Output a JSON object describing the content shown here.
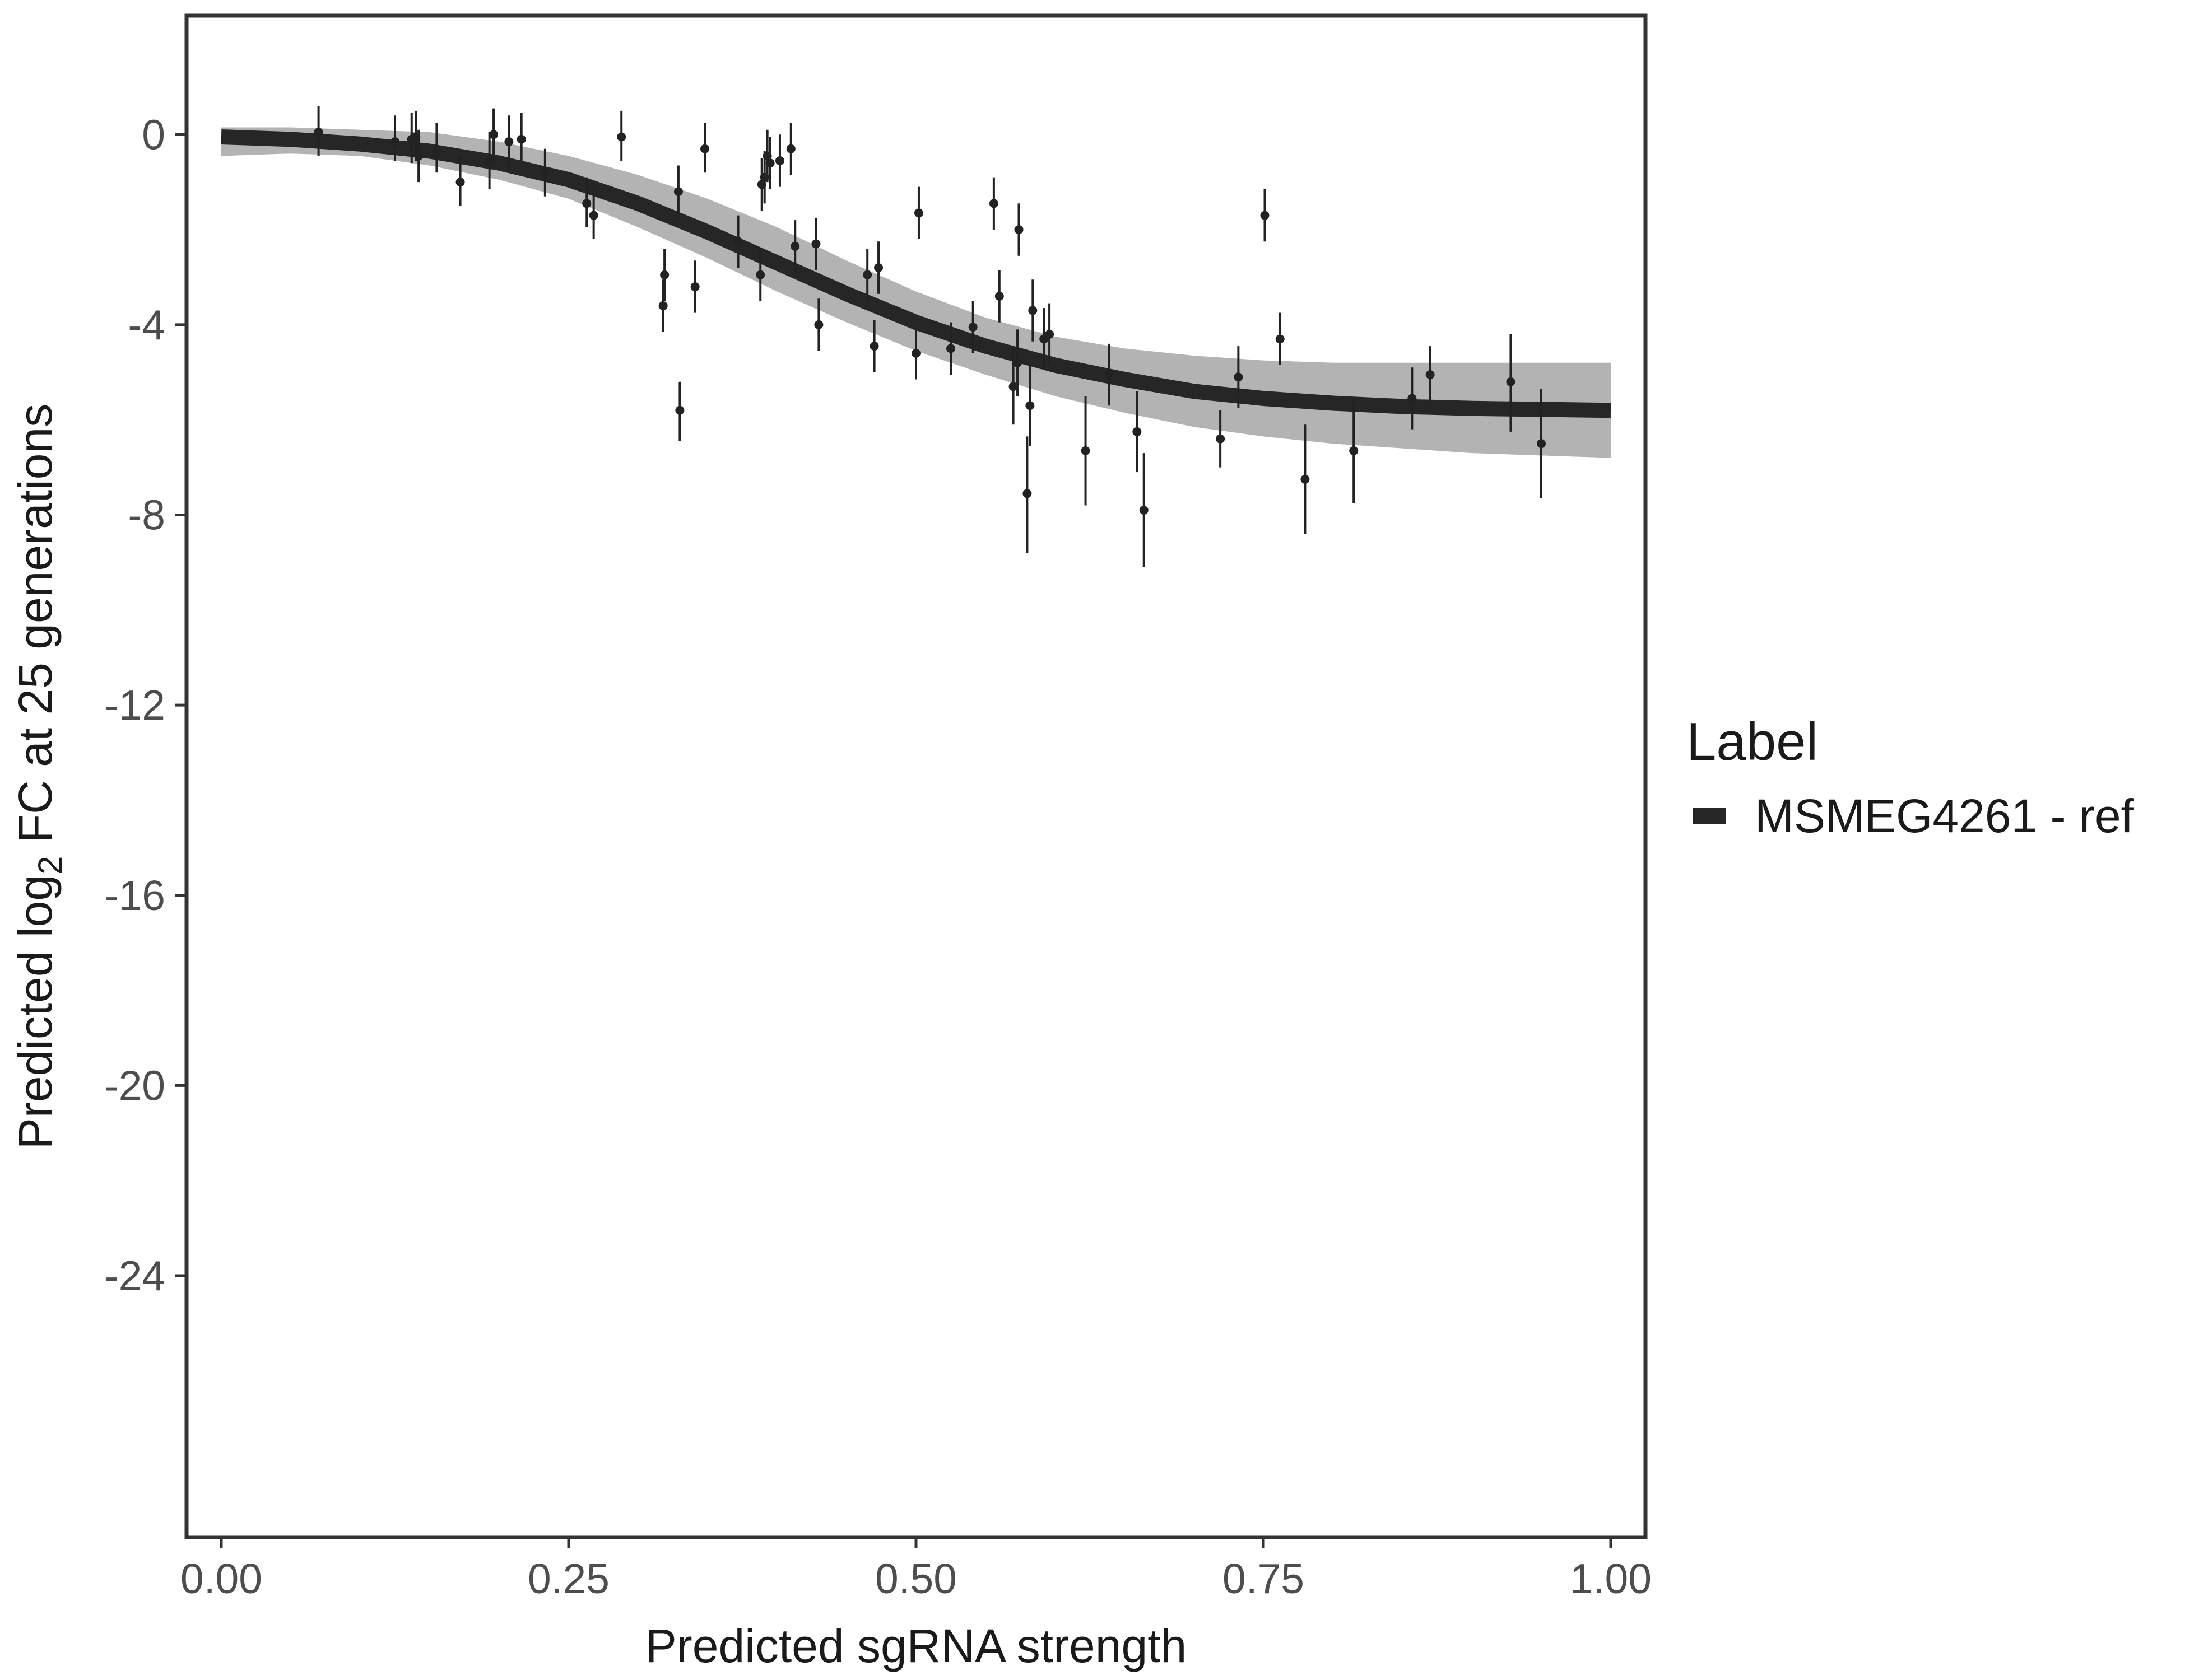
{
  "chart_data": {
    "type": "scatter",
    "xlabel": "Predicted sgRNA strength",
    "ylabel_parts": {
      "before": "Predicted  log",
      "subscript": "2",
      "after": " FC at 25 generations"
    },
    "xlim": [
      -0.025,
      1.025
    ],
    "ylim": [
      -29.5,
      2.5
    ],
    "x_ticks": [
      0.0,
      0.25,
      0.5,
      0.75,
      1.0
    ],
    "x_tick_labels": [
      "0.00",
      "0.25",
      "0.50",
      "0.75",
      "1.00"
    ],
    "y_ticks": [
      0,
      -4,
      -8,
      -12,
      -16,
      -20,
      -24
    ],
    "y_tick_labels": [
      "0",
      "-4",
      "-8",
      "-12",
      "-16",
      "-20",
      "-24"
    ],
    "grid": false,
    "legend": {
      "title": "Label",
      "position": "right",
      "entries": [
        {
          "name": "MSMEG4261 - ref",
          "color": "#262626"
        }
      ]
    },
    "fit_curve": {
      "name": "MSMEG4261 - ref",
      "color": "#262626",
      "x": [
        0.0,
        0.05,
        0.1,
        0.15,
        0.2,
        0.25,
        0.3,
        0.35,
        0.4,
        0.45,
        0.5,
        0.55,
        0.6,
        0.65,
        0.7,
        0.75,
        0.8,
        0.85,
        0.9,
        0.95,
        1.0
      ],
      "y": [
        -0.05,
        -0.1,
        -0.2,
        -0.35,
        -0.6,
        -0.95,
        -1.45,
        -2.05,
        -2.7,
        -3.35,
        -3.95,
        -4.45,
        -4.85,
        -5.15,
        -5.4,
        -5.55,
        -5.65,
        -5.72,
        -5.76,
        -5.78,
        -5.8
      ]
    },
    "uncertainty_band": {
      "color": "#a6a6a6",
      "x": [
        0.0,
        0.05,
        0.1,
        0.15,
        0.2,
        0.25,
        0.3,
        0.35,
        0.4,
        0.45,
        0.5,
        0.55,
        0.6,
        0.65,
        0.7,
        0.75,
        0.8,
        0.85,
        0.9,
        0.95,
        1.0
      ],
      "lower": [
        -0.45,
        -0.4,
        -0.45,
        -0.65,
        -0.95,
        -1.35,
        -1.95,
        -2.6,
        -3.3,
        -3.95,
        -4.55,
        -5.05,
        -5.5,
        -5.85,
        -6.15,
        -6.35,
        -6.5,
        -6.6,
        -6.7,
        -6.75,
        -6.8
      ],
      "upper": [
        0.15,
        0.15,
        0.1,
        0.05,
        -0.15,
        -0.45,
        -0.85,
        -1.35,
        -1.95,
        -2.65,
        -3.3,
        -3.85,
        -4.25,
        -4.5,
        -4.65,
        -4.75,
        -4.8,
        -4.8,
        -4.8,
        -4.8,
        -4.8
      ]
    },
    "points": [
      {
        "x": 0.07,
        "y": 0.05,
        "low": -0.45,
        "high": 0.6
      },
      {
        "x": 0.125,
        "y": -0.15,
        "low": -0.55,
        "high": 0.4
      },
      {
        "x": 0.137,
        "y": -0.1,
        "low": -0.6,
        "high": 0.45
      },
      {
        "x": 0.14,
        "y": -0.05,
        "low": -0.55,
        "high": 0.5
      },
      {
        "x": 0.142,
        "y": -0.45,
        "low": -1.0,
        "high": 0.1
      },
      {
        "x": 0.155,
        "y": -0.35,
        "low": -0.8,
        "high": 0.25
      },
      {
        "x": 0.172,
        "y": -1.0,
        "low": -1.5,
        "high": -0.45
      },
      {
        "x": 0.193,
        "y": -0.55,
        "low": -1.15,
        "high": 0.05
      },
      {
        "x": 0.196,
        "y": 0.0,
        "low": -0.6,
        "high": 0.55
      },
      {
        "x": 0.207,
        "y": -0.15,
        "low": -0.7,
        "high": 0.4
      },
      {
        "x": 0.216,
        "y": -0.1,
        "low": -0.55,
        "high": 0.45
      },
      {
        "x": 0.233,
        "y": -0.8,
        "low": -1.3,
        "high": -0.3
      },
      {
        "x": 0.263,
        "y": -1.45,
        "low": -1.95,
        "high": -0.9
      },
      {
        "x": 0.268,
        "y": -1.7,
        "low": -2.2,
        "high": -1.1
      },
      {
        "x": 0.288,
        "y": -0.05,
        "low": -0.55,
        "high": 0.5
      },
      {
        "x": 0.318,
        "y": -3.6,
        "low": -4.15,
        "high": -3.05
      },
      {
        "x": 0.319,
        "y": -2.95,
        "low": -3.5,
        "high": -2.4
      },
      {
        "x": 0.329,
        "y": -1.2,
        "low": -1.75,
        "high": -0.65
      },
      {
        "x": 0.33,
        "y": -5.8,
        "low": -6.45,
        "high": -5.2
      },
      {
        "x": 0.341,
        "y": -3.2,
        "low": -3.75,
        "high": -2.65
      },
      {
        "x": 0.348,
        "y": -0.3,
        "low": -0.8,
        "high": 0.25
      },
      {
        "x": 0.372,
        "y": -2.25,
        "low": -2.8,
        "high": -1.7
      },
      {
        "x": 0.388,
        "y": -2.95,
        "low": -3.5,
        "high": -2.4
      },
      {
        "x": 0.389,
        "y": -1.05,
        "low": -1.6,
        "high": -0.5
      },
      {
        "x": 0.391,
        "y": -0.9,
        "low": -1.45,
        "high": -0.35
      },
      {
        "x": 0.393,
        "y": -0.45,
        "low": -1.0,
        "high": 0.1
      },
      {
        "x": 0.395,
        "y": -0.6,
        "low": -1.15,
        "high": -0.05
      },
      {
        "x": 0.402,
        "y": -0.55,
        "low": -1.1,
        "high": 0.0
      },
      {
        "x": 0.41,
        "y": -0.3,
        "low": -0.85,
        "high": 0.25
      },
      {
        "x": 0.413,
        "y": -2.35,
        "low": -2.9,
        "high": -1.8
      },
      {
        "x": 0.428,
        "y": -2.3,
        "low": -2.85,
        "high": -1.75
      },
      {
        "x": 0.43,
        "y": -4.0,
        "low": -4.55,
        "high": -3.45
      },
      {
        "x": 0.465,
        "y": -2.95,
        "low": -3.5,
        "high": -2.4
      },
      {
        "x": 0.47,
        "y": -4.45,
        "low": -5.0,
        "high": -3.9
      },
      {
        "x": 0.473,
        "y": -2.8,
        "low": -3.35,
        "high": -2.25
      },
      {
        "x": 0.5,
        "y": -4.6,
        "low": -5.15,
        "high": -4.05
      },
      {
        "x": 0.502,
        "y": -1.65,
        "low": -2.2,
        "high": -1.1
      },
      {
        "x": 0.525,
        "y": -4.5,
        "low": -5.05,
        "high": -3.95
      },
      {
        "x": 0.541,
        "y": -4.05,
        "low": -4.6,
        "high": -3.5
      },
      {
        "x": 0.556,
        "y": -1.45,
        "low": -2.0,
        "high": -0.9
      },
      {
        "x": 0.56,
        "y": -3.4,
        "low": -3.95,
        "high": -2.85
      },
      {
        "x": 0.57,
        "y": -5.3,
        "low": -6.1,
        "high": -4.5
      },
      {
        "x": 0.573,
        "y": -4.8,
        "low": -5.5,
        "high": -4.1
      },
      {
        "x": 0.574,
        "y": -2.0,
        "low": -2.55,
        "high": -1.45
      },
      {
        "x": 0.58,
        "y": -7.55,
        "low": -8.8,
        "high": -6.35
      },
      {
        "x": 0.582,
        "y": -5.7,
        "low": -6.55,
        "high": -4.85
      },
      {
        "x": 0.584,
        "y": -3.7,
        "low": -4.35,
        "high": -3.05
      },
      {
        "x": 0.592,
        "y": -4.3,
        "low": -4.95,
        "high": -3.65
      },
      {
        "x": 0.596,
        "y": -4.2,
        "low": -4.85,
        "high": -3.55
      },
      {
        "x": 0.622,
        "y": -6.65,
        "low": -7.8,
        "high": -5.5
      },
      {
        "x": 0.639,
        "y": -5.05,
        "low": -5.7,
        "high": -4.4
      },
      {
        "x": 0.659,
        "y": -6.25,
        "low": -7.1,
        "high": -5.4
      },
      {
        "x": 0.664,
        "y": -7.9,
        "low": -9.1,
        "high": -6.7
      },
      {
        "x": 0.719,
        "y": -6.4,
        "low": -7.0,
        "high": -5.8
      },
      {
        "x": 0.732,
        "y": -5.1,
        "low": -5.75,
        "high": -4.45
      },
      {
        "x": 0.751,
        "y": -1.7,
        "low": -2.25,
        "high": -1.15
      },
      {
        "x": 0.762,
        "y": -4.3,
        "low": -4.85,
        "high": -3.75
      },
      {
        "x": 0.78,
        "y": -7.25,
        "low": -8.4,
        "high": -6.1
      },
      {
        "x": 0.815,
        "y": -6.65,
        "low": -7.75,
        "high": -5.55
      },
      {
        "x": 0.857,
        "y": -5.55,
        "low": -6.2,
        "high": -4.9
      },
      {
        "x": 0.87,
        "y": -5.05,
        "low": -5.65,
        "high": -4.45
      },
      {
        "x": 0.928,
        "y": -5.2,
        "low": -6.25,
        "high": -4.2
      },
      {
        "x": 0.95,
        "y": -6.5,
        "low": -7.65,
        "high": -5.35
      }
    ]
  }
}
